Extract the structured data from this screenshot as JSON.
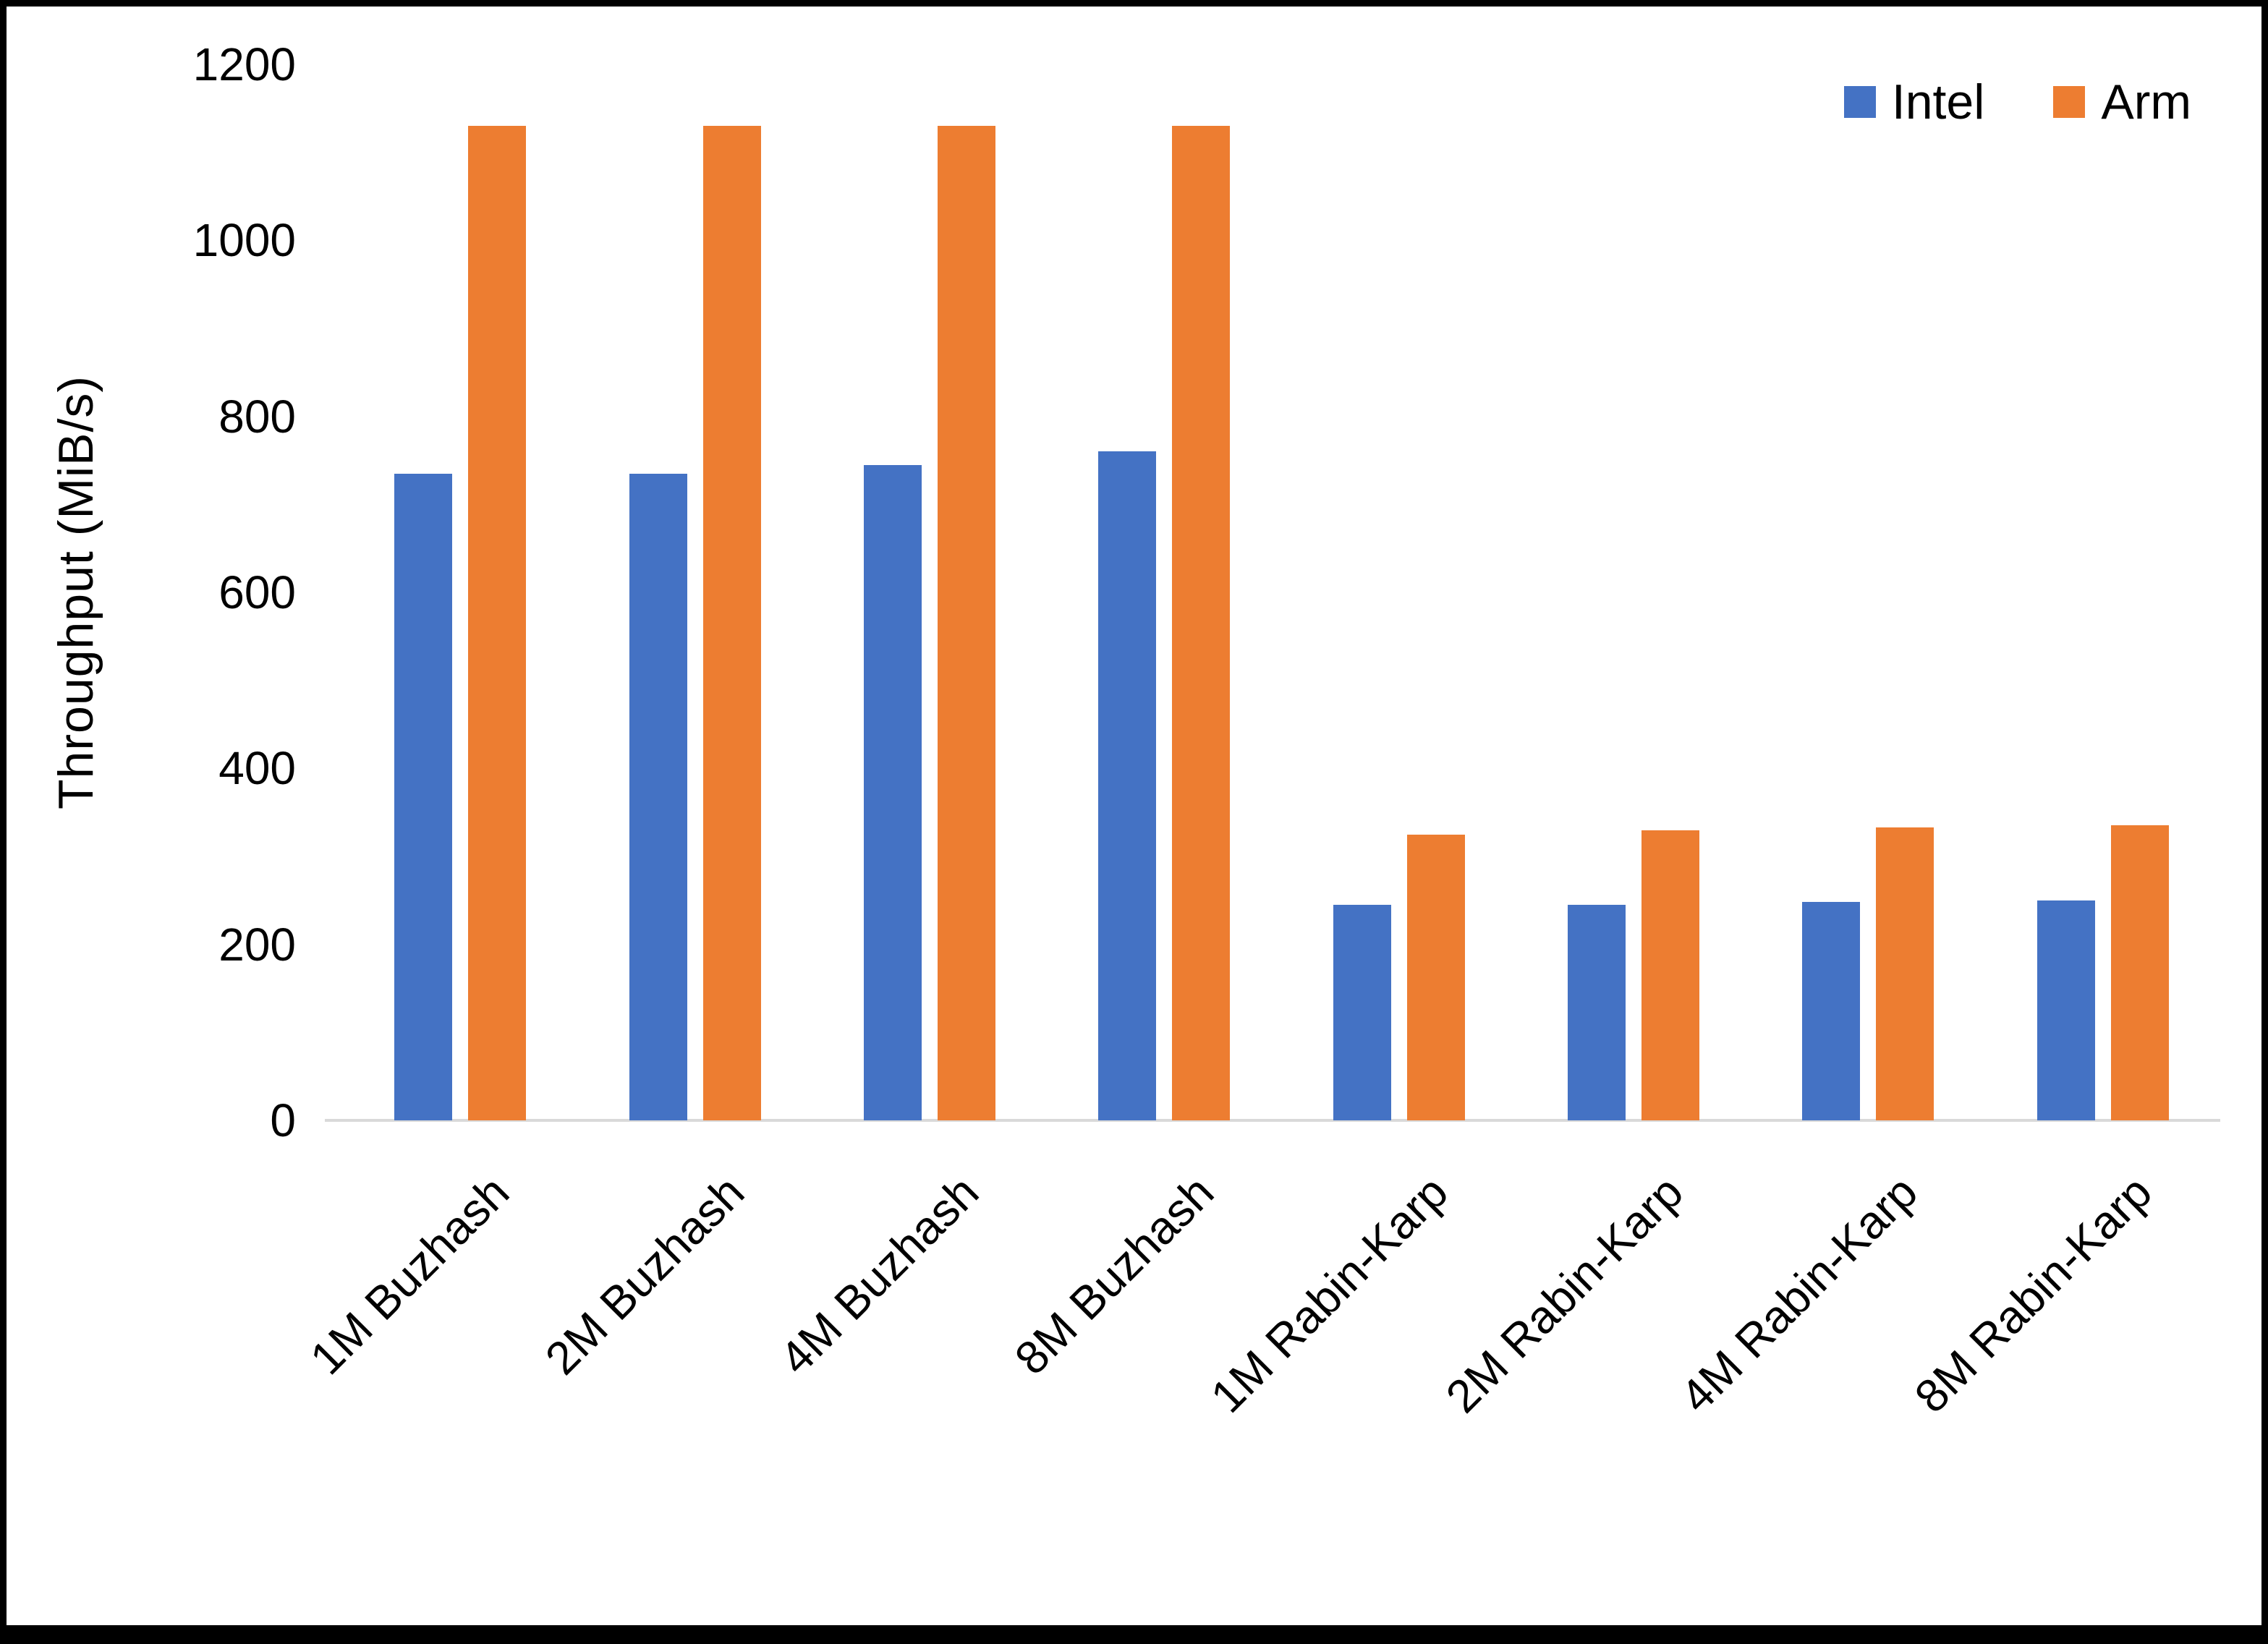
{
  "chart_data": {
    "type": "bar",
    "title": "",
    "xlabel": "",
    "ylabel": "Throughput (MiB/s)",
    "ylim": [
      0,
      1200
    ],
    "yticks": [
      0,
      200,
      400,
      600,
      800,
      1000,
      1200
    ],
    "grid": false,
    "legend_position": "top-right",
    "categories": [
      "1M Buzhash",
      "2M Buzhash",
      "4M Buzhash",
      "8M Buzhash",
      "1M Rabin-Karp",
      "2M Rabin-Karp",
      "4M Rabin-Karp",
      "8M Rabin-Karp"
    ],
    "series": [
      {
        "name": "Intel",
        "color": "#4472C4",
        "values": [
          735,
          735,
          745,
          760,
          245,
          245,
          248,
          250
        ]
      },
      {
        "name": "Arm",
        "color": "#ED7D31",
        "values": [
          1130,
          1130,
          1130,
          1130,
          325,
          330,
          333,
          335
        ]
      }
    ]
  },
  "axis": {
    "baseline_color": "#D9D9D9"
  }
}
